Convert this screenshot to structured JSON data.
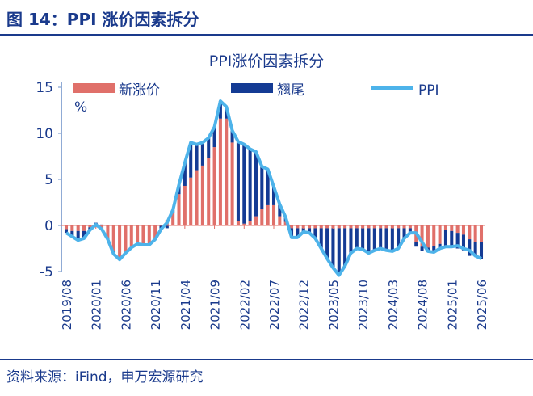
{
  "header": {
    "title": "图 14：PPI 涨价因素拆分"
  },
  "source": "资料来源：iFind，申万宏源研究",
  "chart_data": {
    "type": "bar+line",
    "title": "PPI涨价因素拆分",
    "ylabel": "%",
    "ylim": [
      -5,
      15
    ],
    "yticks": [
      "15",
      "10",
      "5",
      "0",
      "-5"
    ],
    "legend_position": "top",
    "colors": {
      "new": "#e0706a",
      "carryover": "#143b94",
      "ppi": "#4db3ea",
      "axis": "#1a3a8c"
    },
    "xtick_labels": [
      "2019/08",
      "2020/01",
      "2020/06",
      "2020/11",
      "2021/04",
      "2021/09",
      "2022/02",
      "2022/07",
      "2022/12",
      "2023/05",
      "2023/10",
      "2024/03",
      "2024/08",
      "2025/01",
      "2025/06"
    ],
    "x_start": "2019/08",
    "x_end": "2025/06",
    "series": [
      {
        "name": "新涨价",
        "type": "stacked-bar",
        "values": [
          -0.4,
          -0.6,
          -0.6,
          -0.6,
          -0.2,
          -0.2,
          -0.5,
          -1.3,
          -2.8,
          -3.5,
          -3.0,
          -2.4,
          -2.0,
          -2.1,
          -2.1,
          -1.5,
          0.0,
          0.6,
          1.4,
          3.4,
          4.3,
          5.2,
          6.0,
          6.5,
          7.3,
          8.5,
          11.6,
          11.6,
          9.0,
          0.5,
          0.2,
          0.5,
          1.0,
          1.8,
          2.2,
          2.2,
          1.0,
          0.4,
          -0.3,
          -0.3,
          -0.3,
          -0.3,
          -0.3,
          -0.3,
          -0.3,
          -0.3,
          -0.3,
          -0.3,
          -0.3,
          -0.3,
          -0.3,
          -0.3,
          -0.3,
          -0.3,
          -0.3,
          -0.3,
          -0.3,
          -0.3,
          -0.3,
          -1.8,
          -2.3,
          -2.4,
          -2.2,
          -2.0,
          -0.5,
          -0.6,
          -0.8,
          -1.0,
          -1.5,
          -1.8,
          -1.8
        ]
      },
      {
        "name": "翘尾",
        "type": "stacked-bar",
        "values": [
          -0.4,
          -0.6,
          -1.0,
          -0.8,
          -0.3,
          0.3,
          0.1,
          -0.2,
          -0.3,
          -0.2,
          0.0,
          0.0,
          0.0,
          0.0,
          0.0,
          0.0,
          -0.4,
          -0.3,
          0.3,
          1.0,
          2.5,
          3.8,
          2.8,
          2.5,
          2.2,
          2.2,
          1.9,
          1.3,
          1.3,
          8.6,
          8.6,
          7.8,
          7.0,
          4.6,
          3.9,
          2.0,
          1.3,
          0.5,
          -1.0,
          -1.0,
          -0.4,
          -0.5,
          -1.1,
          -2.2,
          -3.3,
          -4.3,
          -5.1,
          -4.1,
          -2.7,
          -2.2,
          -2.3,
          -2.7,
          -2.4,
          -2.2,
          -2.4,
          -2.5,
          -2.2,
          -1.1,
          -0.5,
          -0.5,
          -0.5,
          -0.5,
          -0.5,
          -0.5,
          -1.8,
          -1.6,
          -1.7,
          -1.7,
          -1.8,
          -1.5,
          -1.8
        ]
      },
      {
        "name": "PPI",
        "type": "line",
        "values": [
          -0.8,
          -1.2,
          -1.6,
          -1.4,
          -0.5,
          0.1,
          -0.4,
          -1.5,
          -3.1,
          -3.7,
          -3.0,
          -2.4,
          -2.0,
          -2.1,
          -2.1,
          -1.5,
          -0.4,
          0.3,
          1.7,
          4.4,
          6.8,
          9.0,
          8.8,
          9.0,
          9.5,
          10.7,
          13.5,
          12.9,
          10.3,
          9.1,
          8.8,
          8.3,
          8.0,
          6.4,
          6.1,
          4.2,
          2.3,
          0.9,
          -1.3,
          -1.3,
          -0.7,
          -0.8,
          -1.4,
          -2.5,
          -3.6,
          -4.6,
          -5.4,
          -4.4,
          -3.0,
          -2.5,
          -2.6,
          -3.0,
          -2.7,
          -2.5,
          -2.7,
          -2.8,
          -2.5,
          -1.4,
          -0.8,
          -0.8,
          -1.8,
          -2.8,
          -2.9,
          -2.5,
          -2.3,
          -2.3,
          -2.2,
          -2.5,
          -2.7,
          -3.3,
          -3.6
        ]
      }
    ]
  }
}
